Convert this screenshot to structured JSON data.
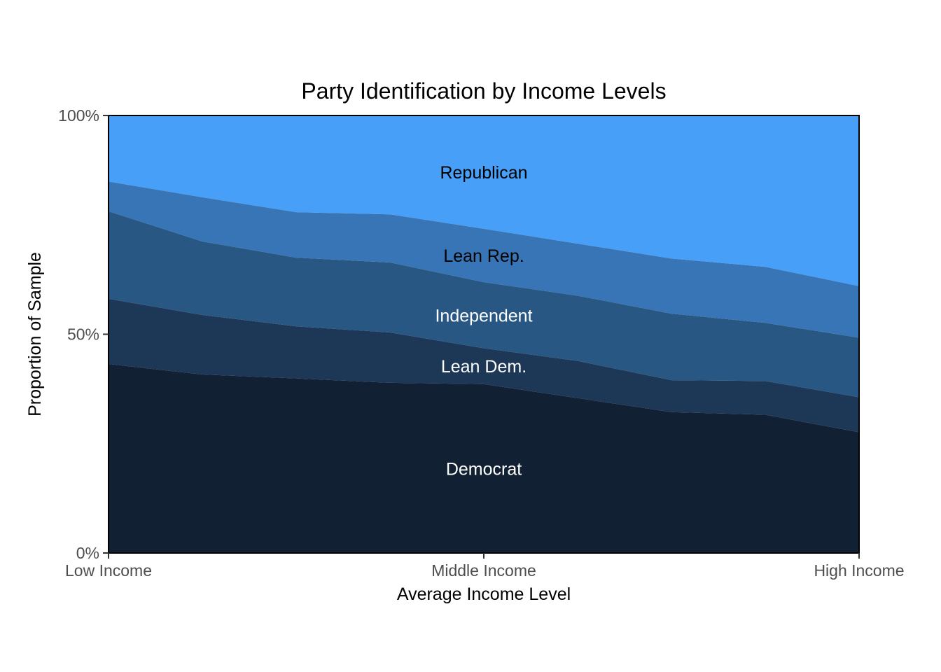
{
  "chart_data": {
    "type": "area",
    "stacked": true,
    "title": "Party Identification by Income Levels",
    "xlabel": "Average Income Level",
    "ylabel": "Proportion of Sample",
    "x_tick_labels": [
      "Low Income",
      "Middle Income",
      "High Income"
    ],
    "y_tick_labels": [
      "0%",
      "50%",
      "100%"
    ],
    "ylim": [
      0,
      100
    ],
    "grid": false,
    "legend": "none",
    "series": [
      {
        "name": "Democrat",
        "color": "#122033",
        "label_color": "#ffffff",
        "values": [
          43.2,
          40.8,
          39.9,
          38.9,
          38.6,
          35.4,
          32.2,
          31.6,
          27.6
        ]
      },
      {
        "name": "Lean Dem.",
        "color": "#1d3756",
        "label_color": "#ffffff",
        "values": [
          14.9,
          13.6,
          11.9,
          11.5,
          8.2,
          8.5,
          7.3,
          7.7,
          8.0
        ]
      },
      {
        "name": "Independent",
        "color": "#285783",
        "label_color": "#ffffff",
        "values": [
          20.0,
          16.8,
          15.7,
          16.0,
          15.1,
          14.9,
          15.2,
          13.3,
          13.6
        ]
      },
      {
        "name": "Lean Rep.",
        "color": "#3775b6",
        "label_color": "#000000",
        "values": [
          6.8,
          10.1,
          10.4,
          11.0,
          12.2,
          11.9,
          12.6,
          12.8,
          11.8
        ]
      },
      {
        "name": "Republican",
        "color": "#479ff7",
        "label_color": "#000000",
        "values": [
          15.1,
          18.7,
          22.1,
          22.6,
          25.9,
          29.3,
          32.7,
          34.6,
          39.0
        ]
      }
    ]
  }
}
